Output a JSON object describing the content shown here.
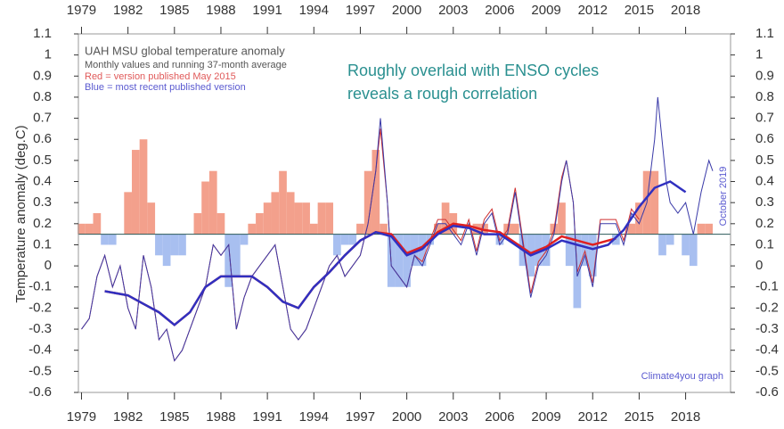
{
  "chart_data": {
    "type": "line",
    "title_lines": [
      "UAH MSU global temperature anomaly",
      "Monthly values and running 37-month average"
    ],
    "legend_texts": [
      {
        "text": "Red = version published May 2015",
        "color": "#e05a5a"
      },
      {
        "text": "Blue = most recent published version",
        "color": "#5a5ad0"
      }
    ],
    "annotation": [
      "Roughly overlaid with ENSO cycles",
      "reveals a rough correlation"
    ],
    "y_label": "Temperature anomaly (deg.C)",
    "date_note": "October 2019",
    "credit": "Climate4you graph",
    "xlim": [
      1978.8,
      2020.9
    ],
    "xticks": [
      1979,
      1982,
      1985,
      1988,
      1991,
      1994,
      1997,
      2000,
      2003,
      2006,
      2009,
      2012,
      2015,
      2018
    ],
    "ylim": [
      -0.6,
      1.1
    ],
    "yticks": [
      1.1,
      1,
      0.9,
      0.8,
      0.7,
      0.6,
      0.5,
      0.4,
      0.3,
      0.2,
      0.1,
      0,
      -0.1,
      -0.2,
      -0.3,
      -0.4,
      -0.5,
      -0.6
    ],
    "bars": {
      "baseline": 0.15,
      "color_above": "#f3a08c",
      "color_below": "#a8bff0",
      "x": [
        1979,
        1979.5,
        1980,
        1980.5,
        1981,
        1981.5,
        1982,
        1982.5,
        1983,
        1983.5,
        1984,
        1984.5,
        1985,
        1985.5,
        1986,
        1986.5,
        1987,
        1987.5,
        1988,
        1988.5,
        1989,
        1989.5,
        1990,
        1990.5,
        1991,
        1991.5,
        1992,
        1992.5,
        1993,
        1993.5,
        1994,
        1994.5,
        1995,
        1995.5,
        1996,
        1996.5,
        1997,
        1997.5,
        1998,
        1998.5,
        1999,
        1999.5,
        2000,
        2000.5,
        2001,
        2001.5,
        2002,
        2002.5,
        2003,
        2003.5,
        2004,
        2004.5,
        2005,
        2005.5,
        2006,
        2006.5,
        2007,
        2007.5,
        2008,
        2008.5,
        2009,
        2009.5,
        2010,
        2010.5,
        2011,
        2011.5,
        2012,
        2012.5,
        2013,
        2013.5,
        2014,
        2014.5,
        2015,
        2015.5,
        2016,
        2016.5,
        2017,
        2017.5,
        2018,
        2018.5,
        2019,
        2019.5
      ],
      "values": [
        0.2,
        0.2,
        0.25,
        0.1,
        0.1,
        0.15,
        0.35,
        0.55,
        0.6,
        0.3,
        0.05,
        0.0,
        0.05,
        0.05,
        0.15,
        0.25,
        0.4,
        0.45,
        0.25,
        -0.1,
        -0.05,
        0.1,
        0.2,
        0.25,
        0.3,
        0.35,
        0.45,
        0.35,
        0.3,
        0.3,
        0.2,
        0.3,
        0.3,
        0.05,
        0.1,
        0.1,
        0.2,
        0.45,
        0.55,
        0.2,
        -0.1,
        -0.1,
        -0.1,
        0.0,
        0.0,
        0.1,
        0.2,
        0.3,
        0.25,
        0.15,
        0.15,
        0.2,
        0.2,
        0.15,
        0.1,
        0.2,
        0.2,
        0.0,
        -0.05,
        0.0,
        0.0,
        0.2,
        0.3,
        0.0,
        -0.2,
        0.0,
        -0.05,
        0.15,
        0.15,
        0.1,
        0.15,
        0.2,
        0.3,
        0.45,
        0.45,
        0.05,
        0.1,
        0.15,
        0.05,
        0.0,
        0.2,
        0.2
      ]
    },
    "series": [
      {
        "color": "#d03030",
        "width": 1,
        "x": [
          1979,
          1979.5,
          1980,
          1980.5,
          1981,
          1981.5,
          1982,
          1982.5,
          1983,
          1983.5,
          1984,
          1984.5,
          1985,
          1985.5,
          1986,
          1986.5,
          1987,
          1987.5,
          1988,
          1988.5,
          1989,
          1989.5,
          1990,
          1990.5,
          1991,
          1991.5,
          1992,
          1992.5,
          1993,
          1993.5,
          1994,
          1994.5,
          1995,
          1995.5,
          1996,
          1996.5,
          1997,
          1997.5,
          1998,
          1998.3,
          1998.75,
          1999,
          1999.5,
          2000,
          2000.5,
          2001,
          2001.5,
          2002,
          2002.5,
          2003,
          2003.5,
          2004,
          2004.5,
          2005,
          2005.5,
          2006,
          2006.5,
          2007,
          2007.5,
          2008,
          2008.5,
          2009,
          2009.5,
          2010,
          2010.3,
          2010.75,
          2011,
          2011.5,
          2012,
          2012.5,
          2013,
          2013.5,
          2014,
          2014.5,
          2015
        ],
        "values": [
          -0.3,
          -0.25,
          -0.05,
          0.05,
          -0.1,
          0.0,
          -0.2,
          -0.3,
          0.05,
          -0.1,
          -0.35,
          -0.3,
          -0.45,
          -0.4,
          -0.3,
          -0.2,
          -0.1,
          0.1,
          0.05,
          0.1,
          -0.3,
          -0.15,
          -0.05,
          0.0,
          0.05,
          0.1,
          -0.1,
          -0.3,
          -0.35,
          -0.3,
          -0.2,
          -0.1,
          0.0,
          0.05,
          -0.05,
          0.0,
          0.05,
          0.2,
          0.45,
          0.65,
          0.3,
          0.0,
          -0.05,
          -0.1,
          0.05,
          0.02,
          0.12,
          0.22,
          0.22,
          0.17,
          0.12,
          0.22,
          0.07,
          0.22,
          0.27,
          0.12,
          0.17,
          0.37,
          0.12,
          -0.13,
          0.02,
          0.07,
          0.17,
          0.42,
          0.5,
          0.3,
          -0.03,
          0.07,
          -0.08,
          0.22,
          0.22,
          0.22,
          0.12,
          0.27,
          0.22
        ]
      },
      {
        "color": "#3a3aa8",
        "width": 1,
        "x": [
          1979,
          1979.5,
          1980,
          1980.5,
          1981,
          1981.5,
          1982,
          1982.5,
          1983,
          1983.5,
          1984,
          1984.5,
          1985,
          1985.5,
          1986,
          1986.5,
          1987,
          1987.5,
          1988,
          1988.5,
          1989,
          1989.5,
          1990,
          1990.5,
          1991,
          1991.5,
          1992,
          1992.5,
          1993,
          1993.5,
          1994,
          1994.5,
          1995,
          1995.5,
          1996,
          1996.5,
          1997,
          1997.5,
          1998,
          1998.3,
          1998.75,
          1999,
          1999.5,
          2000,
          2000.5,
          2001,
          2001.5,
          2002,
          2002.5,
          2003,
          2003.5,
          2004,
          2004.5,
          2005,
          2005.5,
          2006,
          2006.5,
          2007,
          2007.5,
          2008,
          2008.5,
          2009,
          2009.5,
          2010,
          2010.3,
          2010.75,
          2011,
          2011.5,
          2012,
          2012.5,
          2013,
          2013.5,
          2014,
          2014.5,
          2015,
          2015.5,
          2016,
          2016.2,
          2016.75,
          2017,
          2017.5,
          2018,
          2018.5,
          2019,
          2019.5,
          2019.75
        ],
        "values": [
          -0.3,
          -0.25,
          -0.05,
          0.05,
          -0.1,
          0.0,
          -0.2,
          -0.3,
          0.05,
          -0.1,
          -0.35,
          -0.3,
          -0.45,
          -0.4,
          -0.3,
          -0.2,
          -0.1,
          0.1,
          0.05,
          0.1,
          -0.3,
          -0.15,
          -0.05,
          0.0,
          0.05,
          0.1,
          -0.1,
          -0.3,
          -0.35,
          -0.3,
          -0.2,
          -0.1,
          0.0,
          0.05,
          -0.05,
          0.0,
          0.05,
          0.2,
          0.45,
          0.7,
          0.3,
          0.0,
          -0.05,
          -0.1,
          0.05,
          0.0,
          0.1,
          0.2,
          0.2,
          0.15,
          0.1,
          0.2,
          0.05,
          0.2,
          0.25,
          0.1,
          0.15,
          0.35,
          0.1,
          -0.15,
          0.0,
          0.05,
          0.15,
          0.4,
          0.5,
          0.3,
          -0.05,
          0.05,
          -0.1,
          0.2,
          0.2,
          0.2,
          0.1,
          0.25,
          0.2,
          0.3,
          0.6,
          0.8,
          0.4,
          0.3,
          0.25,
          0.3,
          0.15,
          0.35,
          0.5,
          0.45
        ]
      },
      {
        "color": "#e02020",
        "width": 2.5,
        "x": [
          1980.5,
          1982,
          1983,
          1984,
          1985,
          1986,
          1987,
          1988,
          1989,
          1990,
          1991,
          1992,
          1993,
          1994,
          1995,
          1996,
          1997,
          1998,
          1999,
          2000,
          2001,
          2002,
          2003,
          2004,
          2005,
          2006,
          2007,
          2008,
          2009,
          2010,
          2011,
          2012,
          2013,
          2013.5
        ],
        "values": [
          -0.12,
          -0.14,
          -0.18,
          -0.22,
          -0.28,
          -0.22,
          -0.1,
          -0.05,
          -0.05,
          -0.05,
          -0.1,
          -0.17,
          -0.2,
          -0.1,
          -0.03,
          0.05,
          0.12,
          0.16,
          0.15,
          0.06,
          0.09,
          0.16,
          0.2,
          0.19,
          0.17,
          0.16,
          0.11,
          0.06,
          0.09,
          0.14,
          0.12,
          0.1,
          0.12,
          0.13
        ]
      },
      {
        "color": "#3030c0",
        "width": 2.5,
        "x": [
          1980.5,
          1982,
          1983,
          1984,
          1985,
          1986,
          1987,
          1988,
          1989,
          1990,
          1991,
          1992,
          1993,
          1994,
          1995,
          1996,
          1997,
          1998,
          1999,
          2000,
          2001,
          2002,
          2003,
          2004,
          2005,
          2006,
          2007,
          2008,
          2009,
          2010,
          2011,
          2012,
          2013,
          2014,
          2015,
          2016,
          2017,
          2018
        ],
        "values": [
          -0.12,
          -0.14,
          -0.18,
          -0.22,
          -0.28,
          -0.22,
          -0.1,
          -0.05,
          -0.05,
          -0.05,
          -0.1,
          -0.17,
          -0.2,
          -0.1,
          -0.03,
          0.05,
          0.12,
          0.16,
          0.14,
          0.05,
          0.08,
          0.15,
          0.19,
          0.18,
          0.15,
          0.15,
          0.1,
          0.05,
          0.08,
          0.12,
          0.1,
          0.08,
          0.1,
          0.17,
          0.28,
          0.37,
          0.4,
          0.35
        ]
      }
    ]
  }
}
